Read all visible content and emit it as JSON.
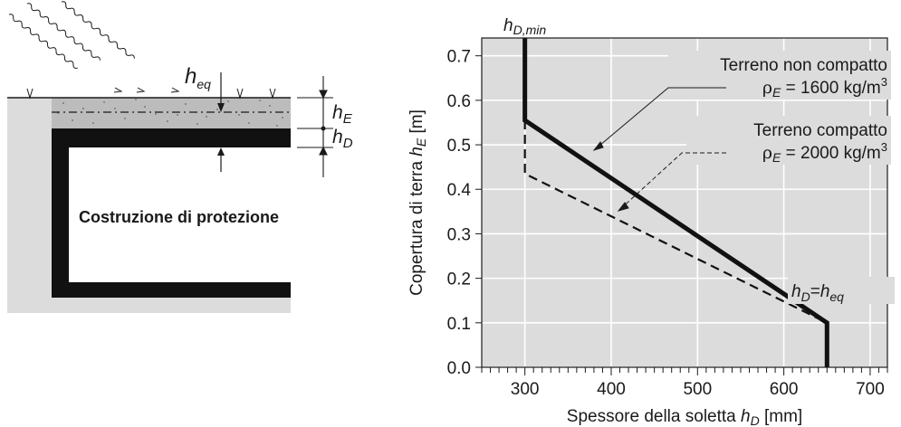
{
  "diagram": {
    "building_label": "Costruzione di protezione",
    "h_eq": {
      "base": "h",
      "sub": "eq"
    },
    "h_E": {
      "base": "h",
      "sub": "E"
    },
    "h_D": {
      "base": "h",
      "sub": "D"
    }
  },
  "chart_data": {
    "type": "line",
    "xlabel": {
      "text": "Spessore della soletta ",
      "var": "h",
      "sub": "D",
      "unit": " [mm]"
    },
    "ylabel": {
      "text": "Copertura di terra ",
      "var": "h",
      "sub": "E",
      "unit": " [m]"
    },
    "xlim": [
      250,
      720
    ],
    "ylim": [
      0.0,
      0.74
    ],
    "xticks": [
      300,
      400,
      500,
      600,
      700
    ],
    "xtick_labels": [
      "300",
      "400",
      "500",
      "600",
      "700"
    ],
    "x_minor_step": 10,
    "yticks": [
      0.0,
      0.1,
      0.2,
      0.3,
      0.4,
      0.5,
      0.6,
      0.7
    ],
    "ytick_labels": [
      "0.0",
      "0.1",
      "0.2",
      "0.3",
      "0.4",
      "0.5",
      "0.6",
      "0.7"
    ],
    "grid": true,
    "background": "#dcdcdc",
    "series": [
      {
        "name": "Terreno non compatto",
        "density_label": {
          "greek": "ρ",
          "sub": "E",
          "value": " = 1600 kg/m",
          "sup": "3"
        },
        "style": "solid",
        "points": [
          [
            300,
            0.74
          ],
          [
            300,
            0.555
          ],
          [
            650,
            0.1
          ],
          [
            650,
            0.0
          ]
        ]
      },
      {
        "name": "Terreno compatto",
        "density_label": {
          "greek": "ρ",
          "sub": "E",
          "value": " = 2000 kg/m",
          "sup": "3"
        },
        "style": "dashed",
        "points": [
          [
            300,
            0.555
          ],
          [
            300,
            0.435
          ],
          [
            650,
            0.1
          ]
        ]
      }
    ],
    "annotations": {
      "h_D_min": {
        "base": "h",
        "sub": "D,min"
      },
      "h_D_eq": {
        "lhs": "h",
        "lhs_sub": "D",
        "op": "=",
        "rhs": "h",
        "rhs_sub": "eq"
      }
    }
  }
}
